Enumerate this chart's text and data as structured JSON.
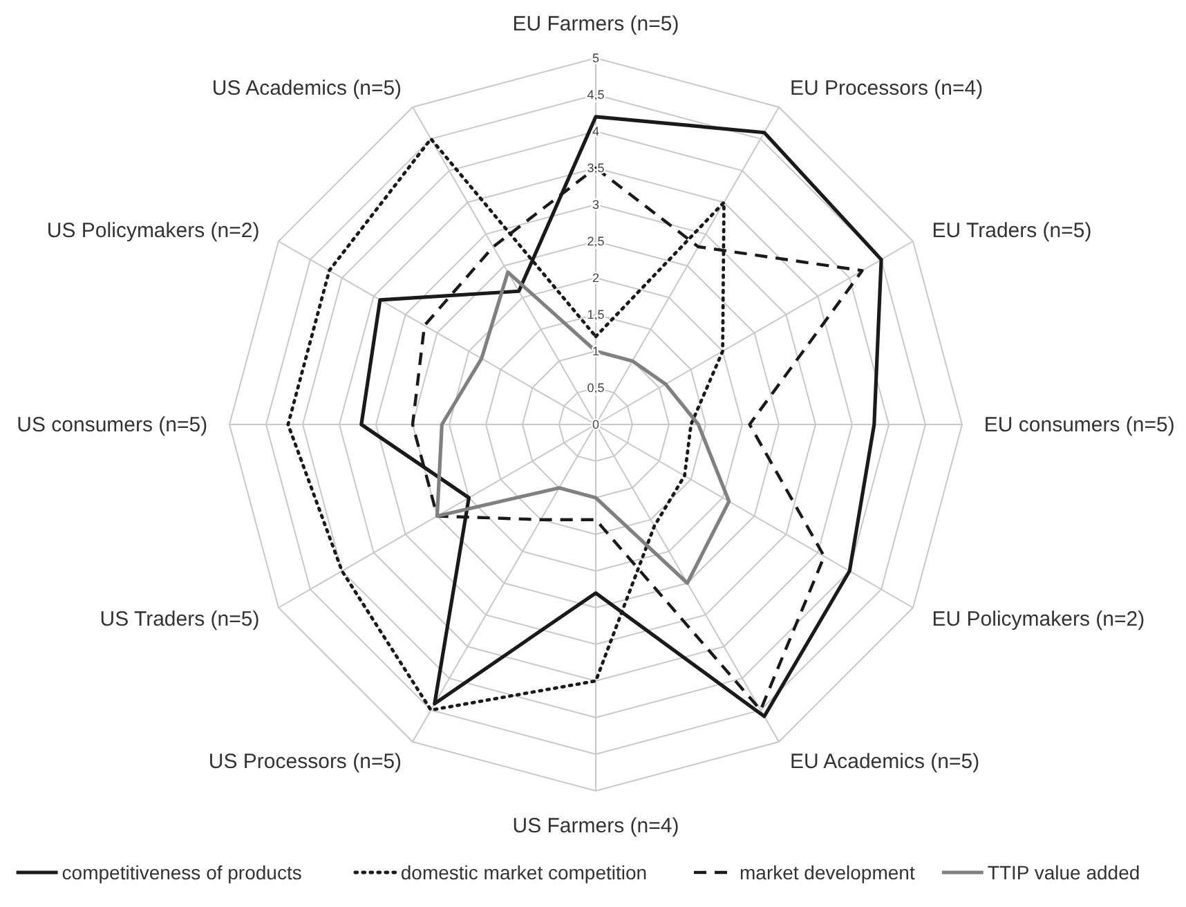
{
  "chart_data": {
    "type": "radar",
    "categories": [
      "EU Farmers (n=5)",
      "EU Processors (n=4)",
      "EU Traders (n=5)",
      "EU consumers (n=5)",
      "EU Policymakers (n=2)",
      "EU Academics (n=5)",
      "US Farmers (n=4)",
      "US Processors (n=5)",
      "US Traders (n=5)",
      "US consumers (n=5)",
      "US Policymakers (n=2)",
      "US Academics (n=5)"
    ],
    "series": [
      {
        "name": "competitiveness of products",
        "color": "#1a1a1a",
        "line_style": "solid",
        "values": [
          4.2,
          4.6,
          4.5,
          3.8,
          4.0,
          4.6,
          2.3,
          4.4,
          2.0,
          3.2,
          3.4,
          2.1
        ]
      },
      {
        "name": "domestic market competition",
        "color": "#1a1a1a",
        "line_style": "dotted",
        "values": [
          1.2,
          3.5,
          2.0,
          1.3,
          1.4,
          1.6,
          3.5,
          4.5,
          4.0,
          4.2,
          4.2,
          4.5
        ]
      },
      {
        "name": "market development",
        "color": "#1a1a1a",
        "line_style": "dashed",
        "values": [
          3.5,
          2.8,
          4.2,
          2.1,
          3.6,
          4.5,
          1.3,
          1.5,
          2.5,
          2.5,
          2.7,
          2.8
        ]
      },
      {
        "name": "TTIP value added",
        "color": "#808080",
        "line_style": "solid",
        "values": [
          1.0,
          1.0,
          1.1,
          1.4,
          2.1,
          2.5,
          1.0,
          1.0,
          2.5,
          2.1,
          1.8,
          2.4
        ]
      }
    ],
    "ylim": [
      0,
      5
    ],
    "yticks": [
      0,
      {
        "value": 0.5,
        "label": "0,5"
      },
      1,
      {
        "value": 1.5,
        "label": "1,5"
      },
      2,
      {
        "value": 2.5,
        "label": "2,5"
      },
      3,
      {
        "value": 3.5,
        "label": "3,5"
      },
      4,
      {
        "value": 4.5,
        "label": "4,5"
      },
      5
    ],
    "grid": true,
    "legend": "bottom"
  }
}
